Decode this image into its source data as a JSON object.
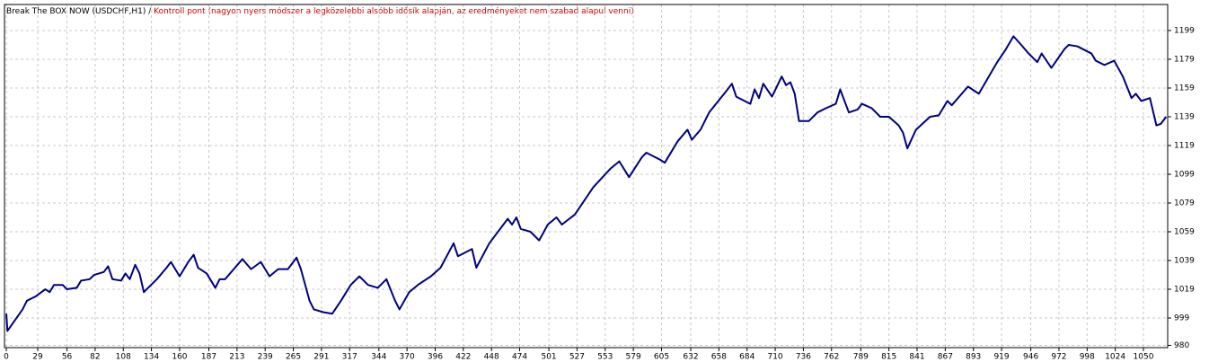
{
  "chart_data": {
    "type": "line",
    "title": "Break The BOX NOW (USDCHF,H1) /",
    "subtitle": "Kontroll pont (nagyon nyers módszer a legközelebbi alsóbb idősík alapján, az eredményeket nem szabad alapul venni)",
    "grid": true,
    "xlim": [
      -1.7,
      1072.4
    ],
    "ylim": [
      978.4,
      1217.1
    ],
    "xticks": [
      0,
      29,
      56,
      82,
      108,
      134,
      160,
      187,
      213,
      239,
      265,
      291,
      317,
      344,
      370,
      396,
      422,
      448,
      474,
      501,
      527,
      553,
      579,
      605,
      632,
      658,
      684,
      710,
      736,
      762,
      789,
      815,
      841,
      867,
      893,
      919,
      946,
      972,
      998,
      1024,
      1050
    ],
    "yticks": [
      980,
      999,
      1019,
      1039,
      1059,
      1079,
      1099,
      1119,
      1139,
      1159,
      1179,
      1199
    ],
    "series": [
      {
        "color": "#000080",
        "x": [
          0,
          1,
          15,
          19,
          27,
          36,
          40,
          44,
          52,
          56,
          65,
          69,
          77,
          81,
          90,
          94,
          98,
          106,
          110,
          114,
          119,
          123,
          127,
          139,
          148,
          152,
          160,
          168,
          173,
          177,
          185,
          193,
          197,
          202,
          218,
          226,
          235,
          243,
          251,
          260,
          268,
          272,
          280,
          284,
          293,
          301,
          309,
          318,
          326,
          334,
          343,
          351,
          359,
          363,
          372,
          380,
          392,
          401,
          413,
          417,
          430,
          434,
          446,
          463,
          467,
          471,
          475,
          484,
          492,
          500,
          508,
          513,
          525,
          542,
          558,
          566,
          575,
          587,
          591,
          604,
          608,
          620,
          629,
          633,
          641,
          649,
          666,
          670,
          674,
          687,
          691,
          695,
          699,
          707,
          716,
          720,
          724,
          728,
          732,
          741,
          749,
          757,
          766,
          770,
          778,
          786,
          790,
          799,
          807,
          815,
          824,
          828,
          832,
          840,
          853,
          861,
          869,
          873,
          888,
          898,
          915,
          923,
          930,
          936,
          944,
          952,
          956,
          965,
          977,
          981,
          989,
          1002,
          1006,
          1014,
          1023,
          1031,
          1039,
          1043,
          1048,
          1056,
          1062,
          1066,
          1071
        ],
        "values": [
          1002,
          990,
          1005,
          1011,
          1014,
          1019,
          1017,
          1022,
          1022,
          1019,
          1020,
          1025,
          1026,
          1029,
          1031,
          1035,
          1026,
          1025,
          1030,
          1026,
          1036,
          1030,
          1017,
          1026,
          1034,
          1038,
          1028,
          1038,
          1043,
          1034,
          1030,
          1020,
          1026,
          1026,
          1040,
          1033,
          1038,
          1028,
          1033,
          1033,
          1041,
          1033,
          1011,
          1005,
          1003,
          1002,
          1011,
          1022,
          1028,
          1022,
          1020,
          1026,
          1011,
          1005,
          1017,
          1022,
          1028,
          1034,
          1051,
          1042,
          1047,
          1034,
          1051,
          1068,
          1064,
          1069,
          1061,
          1059,
          1053,
          1064,
          1069,
          1064,
          1071,
          1090,
          1103,
          1108,
          1097,
          1111,
          1114,
          1109,
          1107,
          1122,
          1130,
          1123,
          1130,
          1142,
          1158,
          1162,
          1153,
          1148,
          1158,
          1152,
          1162,
          1153,
          1167,
          1161,
          1163,
          1155,
          1136,
          1136,
          1142,
          1145,
          1148,
          1158,
          1142,
          1144,
          1148,
          1145,
          1139,
          1139,
          1133,
          1128,
          1117,
          1130,
          1139,
          1140,
          1150,
          1147,
          1160,
          1155,
          1177,
          1186,
          1195,
          1190,
          1183,
          1177,
          1183,
          1173,
          1186,
          1189,
          1188,
          1183,
          1178,
          1175,
          1178,
          1167,
          1152,
          1155,
          1150,
          1152,
          1133,
          1134,
          1139
        ]
      }
    ]
  }
}
